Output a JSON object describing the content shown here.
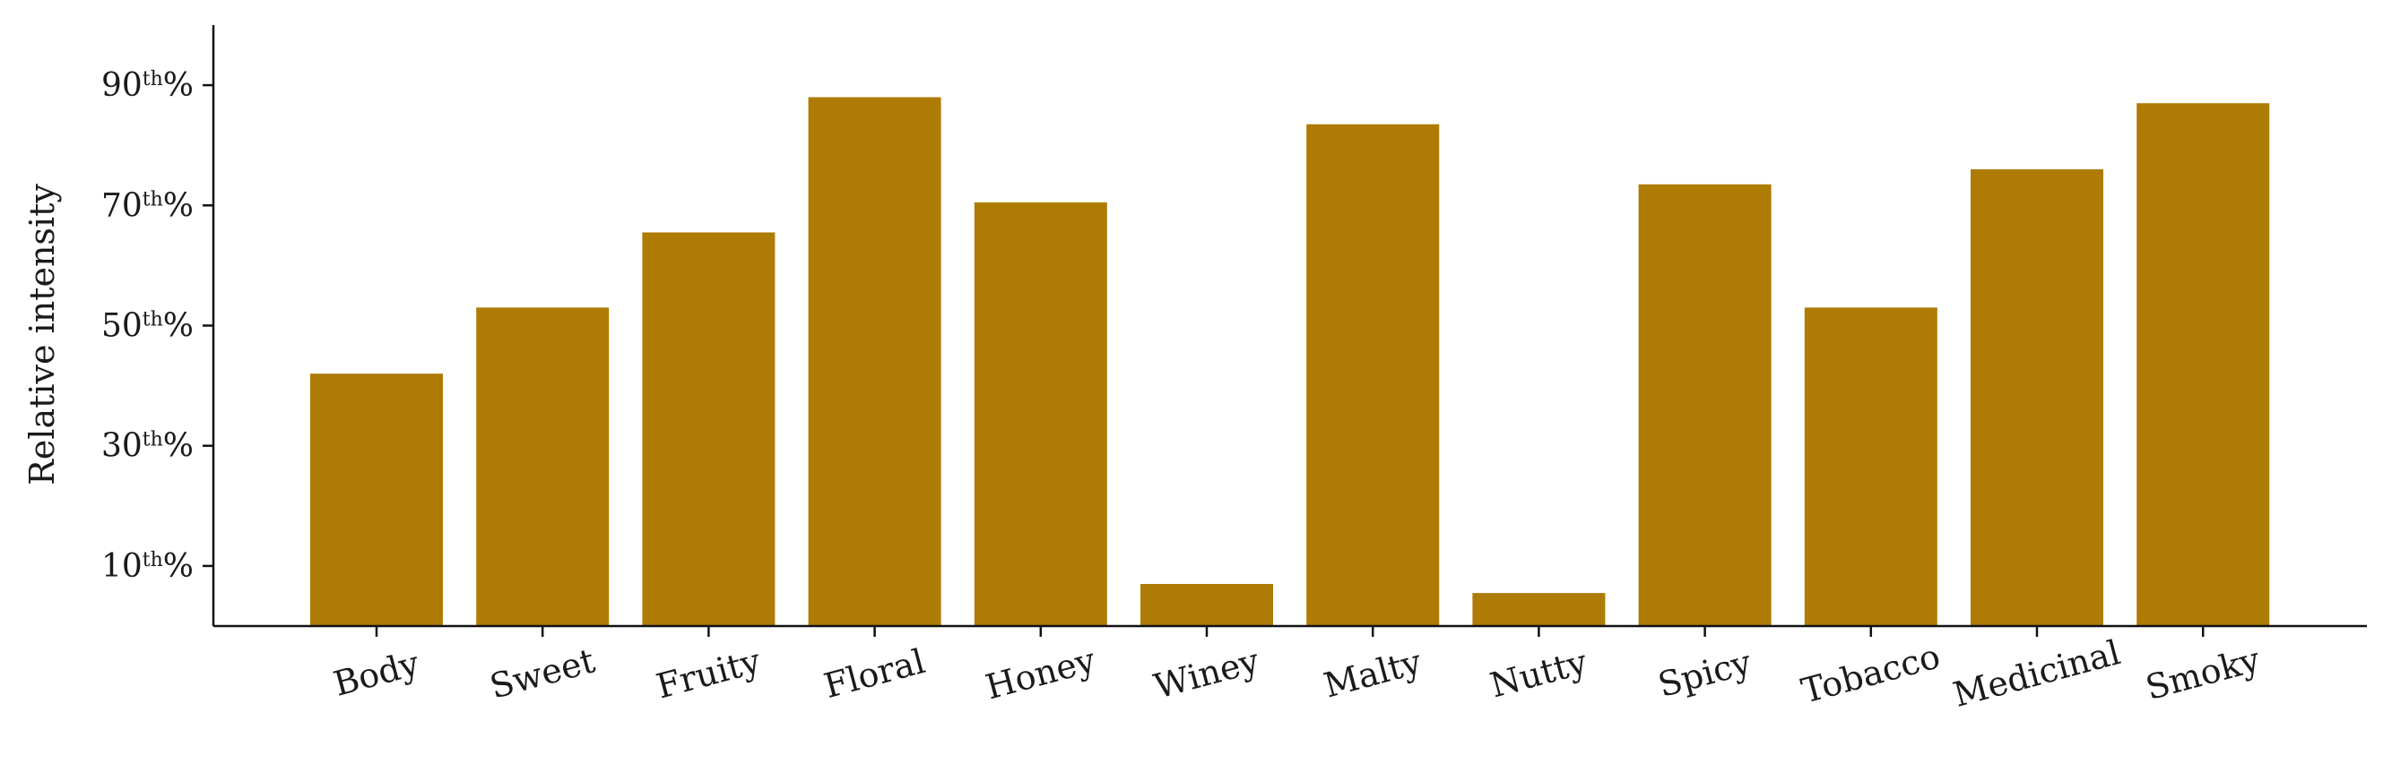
{
  "colors": {
    "bar": "#AE7C04",
    "axis": "#111111",
    "text": "#1a1a1a"
  },
  "chart_data": {
    "type": "bar",
    "title": "",
    "xlabel": "",
    "ylabel": "Relative intensity",
    "categories": [
      "Body",
      "Sweet",
      "Fruity",
      "Floral",
      "Honey",
      "Winey",
      "Malty",
      "Nutty",
      "Spicy",
      "Tobacco",
      "Medicinal",
      "Smoky"
    ],
    "values": [
      42.0,
      53.0,
      65.5,
      88.0,
      70.5,
      7.0,
      83.5,
      5.5,
      73.5,
      53.0,
      76.0,
      87.0
    ],
    "ylim": [
      0,
      100
    ],
    "yticks": [
      {
        "value": 10,
        "num": "10",
        "sup": "th",
        "pct": "%"
      },
      {
        "value": 30,
        "num": "30",
        "sup": "th",
        "pct": "%"
      },
      {
        "value": 50,
        "num": "50",
        "sup": "th",
        "pct": "%"
      },
      {
        "value": 70,
        "num": "70",
        "sup": "th",
        "pct": "%"
      },
      {
        "value": 90,
        "num": "90",
        "sup": "th",
        "pct": "%"
      }
    ],
    "grid": false,
    "legend": "none"
  }
}
